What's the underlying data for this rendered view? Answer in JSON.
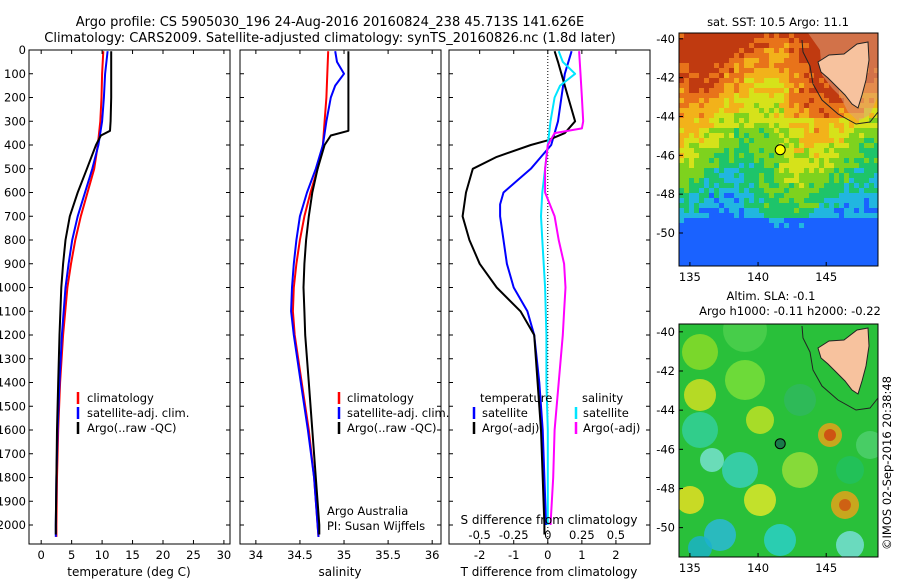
{
  "header": {
    "line1": "Argo profile: CS 5905030_196 24-Aug-2016 20160824_238 45.713S 141.626E",
    "line2": "Climatology: CARS2009. Satellite-adjusted climatology: synTS_20160826.nc (1.8d later)"
  },
  "colors": {
    "climatology": "#ff0000",
    "satellite": "#0000ff",
    "argo": "#000000",
    "sat_salinity": "#00e5ff",
    "argo_salinity": "#ff00ff"
  },
  "chart_data": [
    {
      "type": "line",
      "name": "temperature-panel",
      "xlabel": "temperature (deg C)",
      "ylabel": "",
      "xlim": [
        -2,
        31
      ],
      "ylim": [
        2080,
        0
      ],
      "xticks": [
        "0",
        "5",
        "10",
        "15",
        "20",
        "25",
        "30"
      ],
      "yticks": [
        "0",
        "100",
        "200",
        "300",
        "400",
        "500",
        "600",
        "700",
        "800",
        "900",
        "1000",
        "1100",
        "1200",
        "1300",
        "1400",
        "1500",
        "1600",
        "1700",
        "1800",
        "1900",
        "2000"
      ],
      "legend": [
        "climatology",
        "satellite-adj. clim.",
        "Argo(..raw -QC)"
      ],
      "legend_position": "lower-right",
      "series": [
        {
          "name": "climatology",
          "color": "#ff0000",
          "depth": [
            5,
            100,
            200,
            300,
            400,
            500,
            600,
            700,
            800,
            900,
            1000,
            1200,
            1400,
            1600,
            1800,
            2000,
            2050
          ],
          "values": [
            10.2,
            10.0,
            9.9,
            9.7,
            9.3,
            8.7,
            7.6,
            6.5,
            5.6,
            4.9,
            4.3,
            3.6,
            3.1,
            2.8,
            2.6,
            2.5,
            2.5
          ]
        },
        {
          "name": "satellite-adj. clim.",
          "color": "#0000ff",
          "depth": [
            5,
            100,
            200,
            300,
            400,
            500,
            600,
            700,
            800,
            900,
            1000,
            1200,
            1400,
            1600,
            1800,
            2000,
            2050
          ],
          "values": [
            10.9,
            10.5,
            10.3,
            10.0,
            9.4,
            8.4,
            7.2,
            6.0,
            5.1,
            4.5,
            4.0,
            3.4,
            3.0,
            2.7,
            2.5,
            2.4,
            2.4
          ]
        },
        {
          "name": "Argo(..raw -QC)",
          "color": "#000000",
          "depth": [
            5,
            100,
            200,
            300,
            340,
            360,
            400,
            500,
            600,
            700,
            800,
            900,
            1000,
            1200,
            1400,
            1600,
            1800,
            2000,
            2040
          ],
          "values": [
            11.5,
            11.5,
            11.5,
            11.4,
            11.3,
            9.8,
            9.0,
            7.5,
            6.0,
            4.7,
            4.0,
            3.6,
            3.3,
            3.0,
            2.8,
            2.6,
            2.5,
            2.4,
            2.4
          ]
        }
      ]
    },
    {
      "type": "line",
      "name": "salinity-panel",
      "xlabel": "salinity",
      "ylabel": "",
      "xlim": [
        33.82,
        36.1
      ],
      "ylim": [
        2080,
        0
      ],
      "xticks": [
        "34",
        "34.5",
        "35",
        "35.5",
        "36"
      ],
      "legend": [
        "climatology",
        "satellite-adj. clim.",
        "Argo(..raw -QC)"
      ],
      "legend_position": "lower-right",
      "annotation": [
        "Argo Australia",
        "PI: Susan Wijffels"
      ],
      "series": [
        {
          "name": "climatology",
          "color": "#ff0000",
          "depth": [
            5,
            100,
            200,
            300,
            400,
            500,
            600,
            700,
            800,
            900,
            1000,
            1100,
            1200,
            1400,
            1600,
            1800,
            2000,
            2050
          ],
          "values": [
            34.82,
            34.81,
            34.8,
            34.78,
            34.76,
            34.7,
            34.62,
            34.55,
            34.5,
            34.46,
            34.43,
            34.42,
            34.44,
            34.52,
            34.6,
            34.66,
            34.7,
            34.71
          ]
        },
        {
          "name": "satellite-adj. clim.",
          "color": "#0000ff",
          "depth": [
            5,
            50,
            100,
            150,
            200,
            300,
            400,
            500,
            600,
            700,
            800,
            900,
            1000,
            1100,
            1200,
            1400,
            1600,
            1800,
            2000,
            2050
          ],
          "values": [
            34.9,
            34.92,
            35.0,
            34.9,
            34.85,
            34.8,
            34.76,
            34.68,
            34.58,
            34.5,
            34.46,
            34.43,
            34.41,
            34.4,
            34.43,
            34.51,
            34.59,
            34.66,
            34.7,
            34.71
          ]
        },
        {
          "name": "Argo(..raw -QC)",
          "color": "#000000",
          "depth": [
            5,
            100,
            200,
            300,
            340,
            360,
            400,
            500,
            600,
            700,
            800,
            900,
            1000,
            1100,
            1200,
            1400,
            1600,
            1800,
            2000,
            2040
          ],
          "values": [
            35.05,
            35.05,
            35.05,
            35.05,
            35.05,
            34.85,
            34.78,
            34.7,
            34.64,
            34.6,
            34.57,
            34.55,
            34.54,
            34.55,
            34.56,
            34.6,
            34.64,
            34.68,
            34.72,
            34.72
          ]
        }
      ]
    },
    {
      "type": "line",
      "name": "difference-panel",
      "xlabel": "T difference from climatology",
      "xlabel_top": "S difference from climatology",
      "xlim": [
        -2.9,
        3.0
      ],
      "xlim_salinity": [
        -0.725,
        0.75
      ],
      "ylim": [
        2080,
        0
      ],
      "xticks": [
        "-2",
        "-1",
        "0",
        "1",
        "2"
      ],
      "xticks_salinity": [
        "-0.5",
        "-0.25",
        "0",
        "0.25",
        "0.5"
      ],
      "legend_left_title": "temperature",
      "legend_right_title": "salinity",
      "legend": [
        "satellite",
        "Argo(-adj)",
        "satellite",
        "Argo(-adj)"
      ],
      "legend_position": "lower-center",
      "series": [
        {
          "name": "temperature satellite",
          "color": "#0000ff",
          "depth": [
            5,
            100,
            200,
            300,
            400,
            450,
            500,
            550,
            600,
            650,
            700,
            800,
            900,
            1000,
            1100,
            1200,
            1400,
            1600,
            1800,
            2000
          ],
          "values": [
            0.7,
            0.5,
            0.4,
            0.3,
            0.1,
            -0.2,
            -0.5,
            -0.9,
            -1.3,
            -1.4,
            -1.4,
            -1.3,
            -1.2,
            -1.0,
            -0.6,
            -0.4,
            -0.25,
            -0.15,
            -0.1,
            -0.05
          ]
        },
        {
          "name": "temperature Argo(-adj)",
          "color": "#000000",
          "depth": [
            5,
            50,
            100,
            200,
            300,
            350,
            380,
            400,
            450,
            500,
            550,
            600,
            650,
            700,
            800,
            900,
            1000,
            1100,
            1200,
            1300,
            1400,
            1500,
            1600,
            1800,
            2000,
            2040
          ],
          "values": [
            0.2,
            0.3,
            0.4,
            0.6,
            0.8,
            0.5,
            0.0,
            -0.5,
            -1.5,
            -2.2,
            -2.3,
            -2.4,
            -2.45,
            -2.5,
            -2.3,
            -2.0,
            -1.5,
            -0.8,
            -0.4,
            -0.35,
            -0.3,
            -0.25,
            -0.2,
            -0.15,
            -0.1,
            -0.1
          ]
        },
        {
          "name": "salinity satellite",
          "color": "#00e5ff",
          "depth": [
            5,
            50,
            100,
            150,
            200,
            300,
            400,
            500,
            600,
            700,
            800,
            900,
            1000,
            1200,
            1400,
            1600,
            1800,
            2000
          ],
          "values": [
            0.08,
            0.11,
            0.2,
            0.09,
            0.05,
            0.02,
            0.0,
            -0.02,
            -0.04,
            -0.05,
            -0.04,
            -0.03,
            -0.02,
            -0.01,
            -0.01,
            0.0,
            0.0,
            0.0
          ]
        },
        {
          "name": "salinity Argo(-adj)",
          "color": "#ff00ff",
          "depth": [
            5,
            100,
            200,
            300,
            330,
            350,
            400,
            500,
            600,
            700,
            800,
            900,
            1000,
            1100,
            1200,
            1400,
            1600,
            1800,
            2000
          ],
          "values": [
            0.23,
            0.24,
            0.25,
            0.26,
            0.25,
            0.05,
            0.0,
            -0.02,
            -0.02,
            0.05,
            0.08,
            0.12,
            0.13,
            0.12,
            0.11,
            0.08,
            0.05,
            0.04,
            0.02
          ]
        }
      ]
    },
    {
      "type": "heatmap",
      "name": "sst-map",
      "title": "sat. SST: 10.5 Argo: 11.1",
      "xlim": [
        134.2,
        148.8
      ],
      "ylim": [
        -51.7,
        -39.7
      ],
      "xticks": [
        "135",
        "140",
        "145"
      ],
      "yticks": [
        "-40",
        "-42",
        "-44",
        "-46",
        "-48",
        "-50"
      ],
      "argo_position": {
        "lon": 141.626,
        "lat": -45.713
      }
    },
    {
      "type": "heatmap",
      "name": "sla-map",
      "title": "Altim. SLA: -0.1",
      "subtitle": "Argo h1000: -0.11 h2000: -0.22",
      "xlim": [
        134.2,
        148.8
      ],
      "ylim": [
        -51.5,
        -39.6
      ],
      "xticks": [
        "135",
        "140",
        "145"
      ],
      "yticks": [
        "-40",
        "-42",
        "-44",
        "-46",
        "-48",
        "-50"
      ],
      "argo_position": {
        "lon": 141.626,
        "lat": -45.713
      }
    }
  ],
  "footer": {
    "credit": "©IMOS 02-Sep-2016 20:38:48"
  }
}
